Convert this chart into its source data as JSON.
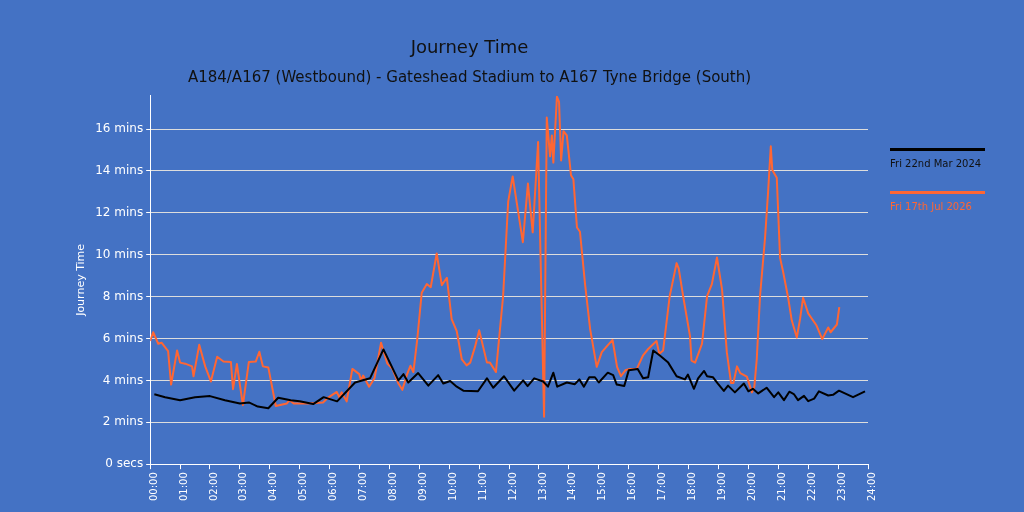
{
  "chart_data": {
    "type": "line",
    "title": "Journey Time",
    "subtitle": "A184/A167 (Westbound) - Gateshead Stadium to A167 Tyne Bridge (South)",
    "ylabel": "Journey Time",
    "xlim": [
      0,
      24
    ],
    "xticks": [
      {
        "value": 0,
        "label": "00:00"
      },
      {
        "value": 1,
        "label": "01:00"
      },
      {
        "value": 2,
        "label": "02:00"
      },
      {
        "value": 3,
        "label": "03:00"
      },
      {
        "value": 4,
        "label": "04:00"
      },
      {
        "value": 5,
        "label": "05:00"
      },
      {
        "value": 6,
        "label": "06:00"
      },
      {
        "value": 7,
        "label": "07:00"
      },
      {
        "value": 8,
        "label": "08:00"
      },
      {
        "value": 9,
        "label": "09:00"
      },
      {
        "value": 10,
        "label": "10:00"
      },
      {
        "value": 11,
        "label": "11:00"
      },
      {
        "value": 12,
        "label": "12:00"
      },
      {
        "value": 13,
        "label": "13:00"
      },
      {
        "value": 14,
        "label": "14:00"
      },
      {
        "value": 15,
        "label": "15:00"
      },
      {
        "value": 16,
        "label": "16:00"
      },
      {
        "value": 17,
        "label": "17:00"
      },
      {
        "value": 18,
        "label": "18:00"
      },
      {
        "value": 19,
        "label": "19:00"
      },
      {
        "value": 20,
        "label": "20:00"
      },
      {
        "value": 21,
        "label": "21:00"
      },
      {
        "value": 22,
        "label": "22:00"
      },
      {
        "value": 23,
        "label": "23:00"
      },
      {
        "value": 24,
        "label": "24:00"
      }
    ],
    "ylim": [
      0,
      17.6
    ],
    "yticks": [
      {
        "value": 0,
        "label": "0 secs"
      },
      {
        "value": 2,
        "label": "2 mins"
      },
      {
        "value": 4,
        "label": "4 mins"
      },
      {
        "value": 6,
        "label": "6 mins"
      },
      {
        "value": 8,
        "label": "8 mins"
      },
      {
        "value": 10,
        "label": "10 mins"
      },
      {
        "value": 12,
        "label": "12 mins"
      },
      {
        "value": 14,
        "label": "14 mins"
      },
      {
        "value": 16,
        "label": "16 mins"
      }
    ],
    "grid": "y",
    "legend": "right",
    "marker": "none",
    "line_style": "solid",
    "series": [
      {
        "name": "Fri 22nd Mar 2024",
        "color": "#000000",
        "x": [
          0.14,
          0.5,
          1.0,
          1.5,
          2.0,
          2.5,
          3.0,
          3.3,
          3.6,
          3.95,
          4.28,
          4.7,
          5.0,
          5.45,
          5.8,
          6.25,
          6.85,
          7.35,
          7.8,
          8.3,
          8.47,
          8.63,
          8.96,
          9.3,
          9.63,
          9.8,
          10.03,
          10.25,
          10.47,
          10.96,
          11.26,
          11.47,
          11.83,
          12.17,
          12.47,
          12.62,
          12.84,
          13.14,
          13.3,
          13.48,
          13.61,
          13.93,
          14.2,
          14.35,
          14.5,
          14.68,
          14.87,
          15.0,
          15.3,
          15.48,
          15.6,
          15.85,
          16.0,
          16.3,
          16.48,
          16.65,
          16.82,
          17.05,
          17.32,
          17.6,
          17.88,
          17.98,
          18.18,
          18.32,
          18.52,
          18.62,
          18.82,
          18.98,
          19.18,
          19.32,
          19.55,
          19.85,
          20.0,
          20.15,
          20.33,
          20.61,
          20.86,
          21.0,
          21.19,
          21.37,
          21.52,
          21.66,
          21.86,
          22.0,
          22.2,
          22.36,
          22.67,
          22.83,
          23.03,
          23.5,
          23.9
        ],
        "values": [
          3.34,
          3.2,
          3.05,
          3.2,
          3.25,
          3.05,
          2.9,
          2.95,
          2.75,
          2.67,
          3.17,
          3.05,
          3.0,
          2.87,
          3.2,
          3.0,
          3.9,
          4.1,
          5.48,
          4.0,
          4.3,
          3.9,
          4.35,
          3.75,
          4.25,
          3.85,
          3.97,
          3.7,
          3.51,
          3.48,
          4.1,
          3.65,
          4.2,
          3.51,
          4.0,
          3.73,
          4.1,
          3.95,
          3.7,
          4.37,
          3.7,
          3.9,
          3.82,
          4.05,
          3.7,
          4.15,
          4.15,
          3.9,
          4.37,
          4.25,
          3.8,
          3.73,
          4.48,
          4.55,
          4.1,
          4.15,
          5.43,
          5.18,
          4.85,
          4.2,
          4.05,
          4.28,
          3.6,
          4.1,
          4.45,
          4.2,
          4.15,
          3.85,
          3.5,
          3.75,
          3.43,
          3.85,
          3.48,
          3.6,
          3.38,
          3.65,
          3.2,
          3.43,
          3.06,
          3.46,
          3.35,
          3.06,
          3.26,
          3.01,
          3.13,
          3.48,
          3.28,
          3.31,
          3.51,
          3.2,
          3.48
        ]
      },
      {
        "name": "Fri 17th Jul 2026",
        "color": "#ff6633",
        "x": [
          0.0,
          0.1,
          0.27,
          0.38,
          0.6,
          0.7,
          0.9,
          1.0,
          1.17,
          1.4,
          1.45,
          1.64,
          1.84,
          2.03,
          2.24,
          2.45,
          2.7,
          2.77,
          2.9,
          3.1,
          3.3,
          3.53,
          3.65,
          3.77,
          3.95,
          4.2,
          4.57,
          4.66,
          4.8,
          5.25,
          5.78,
          5.95,
          6.24,
          6.33,
          6.4,
          6.57,
          6.76,
          6.99,
          7.05,
          7.12,
          7.32,
          7.5,
          7.72,
          7.93,
          8.1,
          8.3,
          8.43,
          8.58,
          8.7,
          8.8,
          8.93,
          9.08,
          9.25,
          9.38,
          9.58,
          9.75,
          9.92,
          10.08,
          10.25,
          10.42,
          10.58,
          10.7,
          10.86,
          11.0,
          11.26,
          11.36,
          11.56,
          11.8,
          11.97,
          12.12,
          12.26,
          12.46,
          12.63,
          12.79,
          12.97,
          13.06,
          13.17,
          13.26,
          13.37,
          13.43,
          13.48,
          13.6,
          13.67,
          13.74,
          13.82,
          13.93,
          14.07,
          14.15,
          14.27,
          14.37,
          14.54,
          14.71,
          14.93,
          15.1,
          15.31,
          15.46,
          15.61,
          15.74,
          15.9,
          16.05,
          16.27,
          16.48,
          16.65,
          16.93,
          17.02,
          17.15,
          17.37,
          17.6,
          17.67,
          17.82,
          18.05,
          18.1,
          18.22,
          18.45,
          18.62,
          18.78,
          18.95,
          19.12,
          19.28,
          19.42,
          19.5,
          19.62,
          19.73,
          19.95,
          20.12,
          20.2,
          20.28,
          20.39,
          20.56,
          20.66,
          20.75,
          20.8,
          20.95,
          21.06,
          21.16,
          21.33,
          21.45,
          21.62,
          21.73,
          21.83,
          22.0,
          22.28,
          22.47,
          22.67,
          22.75,
          22.96,
          23.04
        ],
        "values": [
          5.88,
          6.3,
          5.75,
          5.8,
          5.4,
          3.8,
          5.43,
          4.85,
          4.8,
          4.67,
          4.2,
          5.7,
          4.67,
          3.95,
          5.13,
          4.9,
          4.88,
          3.58,
          4.78,
          2.82,
          4.88,
          4.9,
          5.37,
          4.67,
          4.62,
          2.78,
          2.9,
          3.06,
          2.9,
          2.9,
          2.95,
          3.18,
          3.45,
          3.18,
          3.43,
          3.0,
          4.55,
          4.3,
          4.0,
          4.23,
          3.7,
          4.1,
          5.8,
          4.8,
          4.55,
          3.85,
          3.55,
          4.25,
          4.7,
          4.4,
          5.97,
          8.19,
          8.6,
          8.45,
          10.06,
          8.55,
          8.9,
          6.93,
          6.35,
          5.0,
          4.72,
          4.85,
          5.6,
          6.4,
          4.85,
          4.85,
          4.4,
          8.02,
          12.54,
          13.74,
          12.45,
          10.6,
          13.4,
          11.07,
          15.38,
          9.4,
          2.26,
          16.55,
          14.7,
          15.7,
          14.4,
          17.55,
          17.3,
          14.5,
          15.9,
          15.7,
          13.8,
          13.6,
          11.3,
          11.1,
          8.6,
          6.45,
          4.65,
          5.35,
          5.7,
          5.93,
          4.65,
          4.2,
          4.5,
          4.55,
          4.55,
          5.2,
          5.5,
          5.88,
          5.27,
          5.43,
          8.02,
          9.6,
          9.35,
          8.02,
          6.1,
          4.95,
          4.85,
          5.75,
          8.02,
          8.6,
          9.87,
          8.35,
          5.35,
          3.88,
          3.88,
          4.67,
          4.35,
          4.18,
          3.43,
          3.7,
          5.0,
          8.02,
          10.85,
          13.0,
          15.18,
          14.05,
          13.68,
          9.85,
          9.2,
          7.95,
          6.87,
          6.05,
          6.95,
          7.95,
          7.2,
          6.62,
          5.97,
          6.53,
          6.3,
          6.67,
          7.5
        ]
      }
    ]
  }
}
